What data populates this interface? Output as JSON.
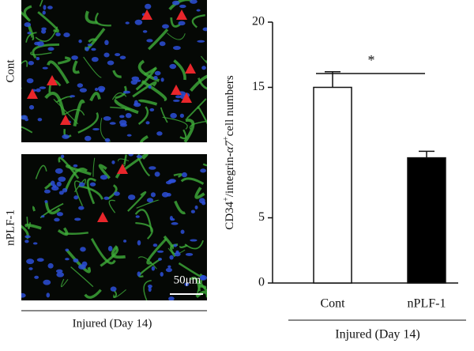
{
  "images": [
    {
      "label": "Cont"
    },
    {
      "label": "nPLF-1",
      "scale_bar": "50μm"
    }
  ],
  "images_caption": "Injured (Day 14)",
  "chart_data": {
    "type": "bar",
    "ylabel_parts": [
      {
        "text": "CD34"
      },
      {
        "text": "+",
        "sup": true
      },
      {
        "text": "/integrin-"
      },
      {
        "text": "α7",
        "italic": true
      },
      {
        "text": "+",
        "sup": true
      },
      {
        "text": "cell numbers"
      }
    ],
    "categories": [
      "Cont",
      "nPLF-1"
    ],
    "values": [
      15,
      9.6
    ],
    "errors": [
      1.2,
      0.5
    ],
    "colors": [
      "#ffffff",
      "#000000"
    ],
    "ylim": [
      0,
      20
    ],
    "yticks": [
      0,
      5,
      15,
      20
    ],
    "xlabel": "Injured (Day 14)",
    "significance": "*"
  }
}
